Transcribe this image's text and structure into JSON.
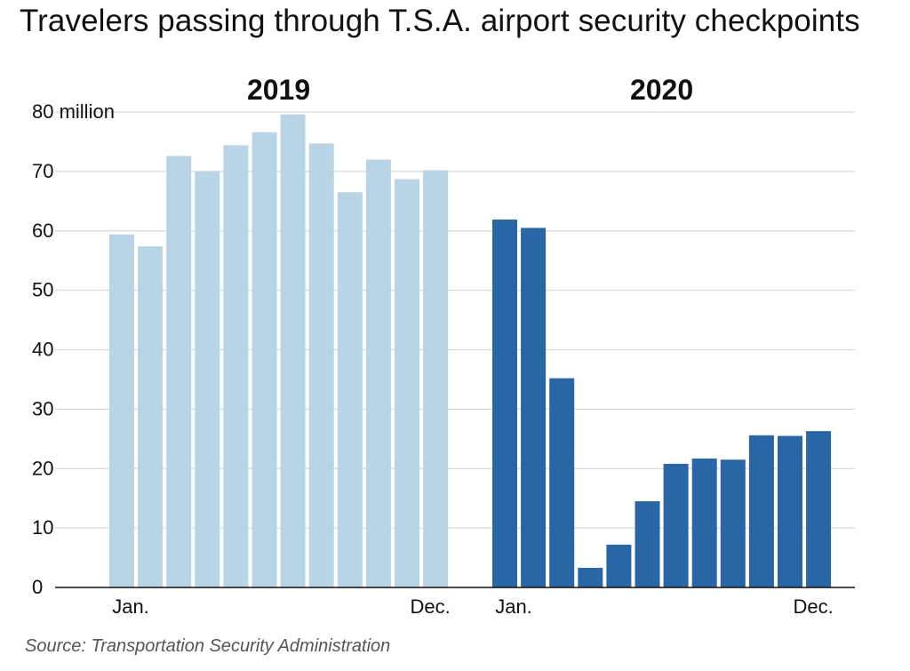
{
  "title": "Travelers passing through T.S.A. airport security checkpoints",
  "source": "Source: Transportation Security Administration",
  "colors": {
    "2019": "#b8d4e5",
    "2020": "#2a65a6"
  },
  "chart_data": {
    "type": "bar",
    "title": "Travelers passing through T.S.A. airport security checkpoints",
    "ylim": [
      0,
      80
    ],
    "y_ticks": [
      {
        "value": 0,
        "label": "0"
      },
      {
        "value": 10,
        "label": "10"
      },
      {
        "value": 20,
        "label": "20"
      },
      {
        "value": 30,
        "label": "30"
      },
      {
        "value": 40,
        "label": "40"
      },
      {
        "value": 50,
        "label": "50"
      },
      {
        "value": 60,
        "label": "60"
      },
      {
        "value": 70,
        "label": "70"
      },
      {
        "value": 80,
        "label": "80 million"
      }
    ],
    "grid": true,
    "groups": [
      {
        "name": "2019",
        "first_label": "Jan.",
        "last_label": "Dec.",
        "values": [
          59.4,
          57.4,
          72.6,
          70.0,
          74.4,
          76.6,
          79.6,
          74.7,
          66.5,
          72.0,
          68.7,
          70.2
        ]
      },
      {
        "name": "2020",
        "first_label": "Jan.",
        "last_label": "Dec.",
        "values": [
          61.9,
          60.5,
          35.2,
          3.3,
          7.2,
          14.5,
          20.8,
          21.7,
          21.5,
          25.6,
          25.5,
          26.3
        ]
      }
    ]
  }
}
